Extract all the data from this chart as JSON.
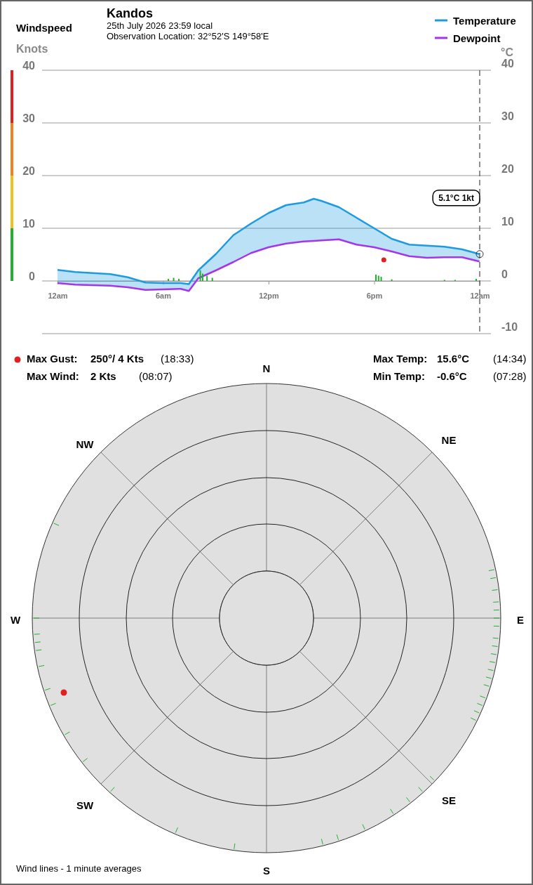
{
  "chart_data": [
    {
      "type": "line",
      "title": "Kandos",
      "subtitle": "25th July 2026  23:59 local\nObservation Location: 32°52'S 149°58'E",
      "ylabel": "Knots",
      "y2label": "°C",
      "x": [
        "2026-07-25T00:00",
        "2026-07-25T01:00",
        "2026-07-25T02:00",
        "2026-07-25T03:00",
        "2026-07-25T04:00",
        "2026-07-25T05:00",
        "2026-07-25T06:00",
        "2026-07-25T07:00",
        "2026-07-25T07:28",
        "2026-07-25T08:00",
        "2026-07-25T09:00",
        "2026-07-25T10:00",
        "2026-07-25T11:00",
        "2026-07-25T12:00",
        "2026-07-25T13:00",
        "2026-07-25T14:00",
        "2026-07-25T14:34",
        "2026-07-25T15:00",
        "2026-07-25T16:00",
        "2026-07-25T17:00",
        "2026-07-25T18:00",
        "2026-07-25T19:00",
        "2026-07-25T20:00",
        "2026-07-25T21:00",
        "2026-07-25T22:00",
        "2026-07-25T23:00",
        "2026-07-25T23:59"
      ],
      "xlim": [
        "2026-07-25T00:00",
        "2026-07-26T00:00"
      ],
      "xticks": [
        {
          "value": "2026-07-25T00:00",
          "label": "12am"
        },
        {
          "value": "2026-07-25T06:00",
          "label": "6am"
        },
        {
          "value": "2026-07-25T12:00",
          "label": "12pm"
        },
        {
          "value": "2026-07-25T18:00",
          "label": "6pm"
        },
        {
          "value": "2026-07-26T00:00",
          "label": "12am"
        }
      ],
      "ylim": [
        -10,
        40
      ],
      "yticks": [
        0,
        10,
        20,
        30,
        40
      ],
      "y2lim": [
        -10,
        40
      ],
      "y2ticks": [
        -10,
        0,
        10,
        20,
        30,
        40
      ],
      "grid": true,
      "legend": "top right",
      "marker": "none",
      "series": [
        {
          "name": "Temperature",
          "color": "#1e9be0",
          "values": [
            2.1,
            1.7,
            1.5,
            1.3,
            0.7,
            -0.3,
            -0.4,
            -0.4,
            -0.6,
            2.0,
            5.1,
            8.7,
            10.9,
            12.9,
            14.4,
            14.9,
            15.6,
            15.2,
            14.0,
            12.0,
            10.0,
            8.0,
            6.9,
            6.7,
            6.5,
            6.0,
            5.1
          ],
          "lower": [
            -0.4,
            -0.7,
            -0.8,
            -0.9,
            -1.2,
            -1.7,
            -1.6,
            -1.5,
            -1.9,
            0.5,
            2.0,
            3.6,
            5.3,
            6.4,
            7.1,
            7.5,
            7.6,
            7.7,
            7.9,
            6.9,
            6.4,
            5.6,
            4.7,
            4.4,
            4.5,
            4.5,
            3.7
          ],
          "upper": [
            2.1,
            1.7,
            1.5,
            1.3,
            0.7,
            -0.3,
            -0.4,
            -0.4,
            -0.6,
            2.0,
            5.1,
            8.7,
            10.9,
            12.9,
            14.4,
            14.9,
            15.6,
            15.2,
            14.0,
            12.0,
            10.0,
            8.0,
            6.9,
            6.7,
            6.5,
            6.0,
            5.1
          ]
        },
        {
          "name": "Dewpoint",
          "color": "#a535e8",
          "values": [
            -0.4,
            -0.7,
            -0.8,
            -0.9,
            -1.2,
            -1.7,
            -1.6,
            -1.5,
            -1.9,
            0.5,
            2.0,
            3.6,
            5.3,
            6.4,
            7.1,
            7.5,
            7.6,
            7.7,
            7.9,
            6.9,
            6.4,
            5.6,
            4.7,
            4.4,
            4.5,
            4.5,
            3.7
          ]
        },
        {
          "type": "bar",
          "color": "#22b030",
          "x": [
            "2026-07-25T06:18",
            "2026-07-25T06:36",
            "2026-07-25T06:54",
            "2026-07-25T08:07",
            "2026-07-25T08:15",
            "2026-07-25T08:30",
            "2026-07-25T08:48",
            "2026-07-25T18:06",
            "2026-07-25T18:15",
            "2026-07-25T18:24",
            "2026-07-25T19:00",
            "2026-07-25T22:00",
            "2026-07-25T22:36",
            "2026-07-25T23:48"
          ],
          "values": [
            0.4,
            0.6,
            0.4,
            2,
            1.4,
            1,
            0.6,
            1.2,
            1,
            0.8,
            0.3,
            0.2,
            0.2,
            0.4
          ]
        },
        {
          "type": "scatter",
          "color": "#e02020",
          "marker": "circle",
          "x": [
            "2026-07-25T18:33"
          ],
          "values": [
            4
          ]
        }
      ],
      "ref_lines": [
        {
          "axis": "x",
          "value": "2026-07-26T00:00",
          "line_style": "dashed",
          "color": "#555555"
        }
      ],
      "annotations": [
        "Windspeed",
        "5.1°C  1kt"
      ]
    },
    {
      "type": "other",
      "annotations": [
        "Max Gust:",
        "250°/  4 Kts",
        "(18:33)",
        "Max Wind:",
        "2 Kts",
        "(08:07)",
        "Max Temp:",
        "15.6°C",
        "(14:34)",
        "Min Temp:",
        "-0.6°C",
        "(07:28)",
        "N",
        "NE",
        "E",
        "SE",
        "S",
        "SW",
        "W",
        "NW",
        "Wind lines - 1 minute averages"
      ]
    }
  ]
}
